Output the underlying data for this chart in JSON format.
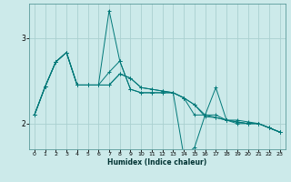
{
  "xlabel": "Humidex (Indice chaleur)",
  "bg_color": "#cceaea",
  "grid_color": "#aad0d0",
  "line_color": "#007878",
  "xlim": [
    -0.5,
    23.5
  ],
  "ylim": [
    1.7,
    3.4
  ],
  "yticks": [
    2,
    3
  ],
  "xticks": [
    0,
    1,
    2,
    3,
    4,
    5,
    6,
    7,
    8,
    9,
    10,
    11,
    12,
    13,
    14,
    15,
    16,
    17,
    18,
    19,
    20,
    21,
    22,
    23
  ],
  "series": [
    [
      2.1,
      2.43,
      2.72,
      2.83,
      2.45,
      2.45,
      2.45,
      2.45,
      2.58,
      2.53,
      2.42,
      2.4,
      2.38,
      2.36,
      2.3,
      2.22,
      2.1,
      2.07,
      2.04,
      2.02,
      2.0,
      2.0,
      1.95,
      1.9
    ],
    [
      2.1,
      2.43,
      2.72,
      2.83,
      2.45,
      2.45,
      2.45,
      3.32,
      2.73,
      2.4,
      2.36,
      2.36,
      2.36,
      2.36,
      1.62,
      1.72,
      2.1,
      2.1,
      2.04,
      2.0,
      2.0,
      2.0,
      1.95,
      1.9
    ],
    [
      2.1,
      2.43,
      2.72,
      2.83,
      2.45,
      2.45,
      2.45,
      2.6,
      2.73,
      2.4,
      2.36,
      2.36,
      2.36,
      2.36,
      2.3,
      2.1,
      2.1,
      2.42,
      2.04,
      2.04,
      2.02,
      2.0,
      1.95,
      1.9
    ],
    [
      2.1,
      2.43,
      2.72,
      2.83,
      2.45,
      2.45,
      2.45,
      2.45,
      2.58,
      2.53,
      2.42,
      2.4,
      2.38,
      2.36,
      2.3,
      2.22,
      2.08,
      2.07,
      2.04,
      2.02,
      2.0,
      2.0,
      1.95,
      1.9
    ]
  ]
}
